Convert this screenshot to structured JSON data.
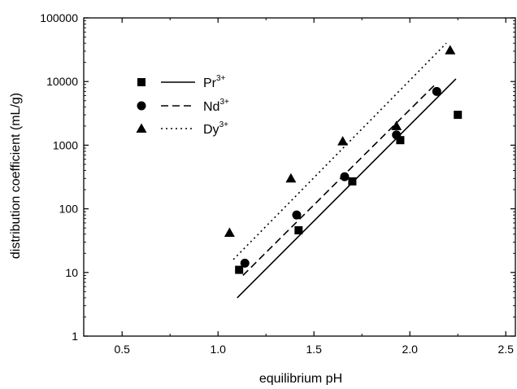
{
  "chart_data": {
    "type": "scatter",
    "title": "",
    "xlabel": "equilibrium pH",
    "ylabel": "distribution coefficient (mL/g)",
    "xlim": [
      0.3,
      2.55
    ],
    "ylim": [
      1,
      100000
    ],
    "y_scale": "log",
    "x_ticks": [
      0.5,
      1.0,
      1.5,
      2.0,
      2.5
    ],
    "x_tick_labels": [
      "0.5",
      "1.0",
      "1.5",
      "2.0",
      "2.5"
    ],
    "y_ticks": [
      1,
      10,
      100,
      1000,
      10000,
      100000
    ],
    "y_tick_labels": [
      "1",
      "10",
      "100",
      "1000",
      "10000",
      "100000"
    ],
    "grid": false,
    "legend_position": "top-left",
    "series": [
      {
        "label_base": "Pr",
        "label_sup": "3+",
        "marker": "square",
        "line_style": "solid",
        "points": [
          {
            "x": 1.11,
            "y": 11
          },
          {
            "x": 1.42,
            "y": 46
          },
          {
            "x": 1.7,
            "y": 270
          },
          {
            "x": 1.95,
            "y": 1200
          },
          {
            "x": 2.25,
            "y": 3000
          }
        ],
        "fit": [
          {
            "x": 1.1,
            "y": 4
          },
          {
            "x": 2.24,
            "y": 11000
          }
        ]
      },
      {
        "label_base": "Nd",
        "label_sup": "3+",
        "marker": "circle",
        "line_style": "dashed",
        "points": [
          {
            "x": 1.14,
            "y": 14
          },
          {
            "x": 1.41,
            "y": 80
          },
          {
            "x": 1.66,
            "y": 320
          },
          {
            "x": 1.93,
            "y": 1450
          },
          {
            "x": 2.14,
            "y": 7000
          }
        ],
        "fit": [
          {
            "x": 1.13,
            "y": 9
          },
          {
            "x": 2.14,
            "y": 9500
          }
        ]
      },
      {
        "label_base": "Dy",
        "label_sup": "3+",
        "marker": "triangle",
        "line_style": "dotted",
        "points": [
          {
            "x": 1.06,
            "y": 42
          },
          {
            "x": 1.38,
            "y": 300
          },
          {
            "x": 1.65,
            "y": 1150
          },
          {
            "x": 1.93,
            "y": 2000
          },
          {
            "x": 2.21,
            "y": 31000
          }
        ],
        "fit": [
          {
            "x": 1.08,
            "y": 16
          },
          {
            "x": 2.19,
            "y": 40000
          }
        ]
      }
    ]
  }
}
